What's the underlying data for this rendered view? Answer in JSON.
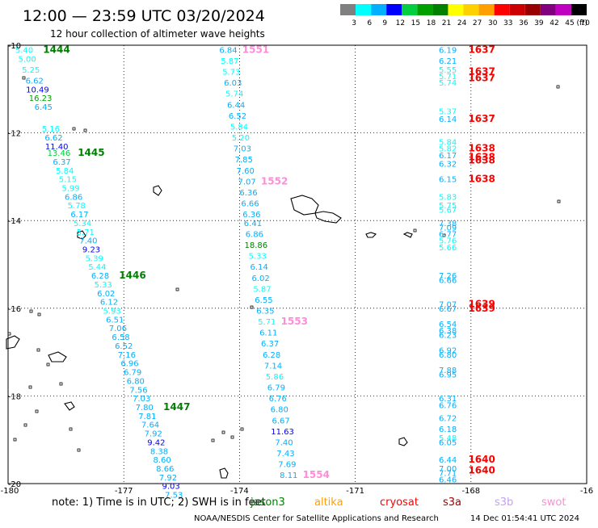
{
  "header": {
    "title": "12:00 — 23:59 UTC 03/20/2024",
    "subtitle": "12 hour collection of altimeter wave heights"
  },
  "colorbar": {
    "unit": "(ft)",
    "ticks": [
      "3",
      "6",
      "9",
      "12",
      "15",
      "18",
      "21",
      "24",
      "27",
      "30",
      "33",
      "36",
      "39",
      "42",
      "45",
      "70"
    ],
    "colors": [
      "#808080",
      "#00ffff",
      "#00b0ff",
      "#0000ff",
      "#00d040",
      "#00a000",
      "#008000",
      "#ffff00",
      "#ffd000",
      "#ffa000",
      "#ff0000",
      "#cc0000",
      "#990000",
      "#800080",
      "#c000c0",
      "#000000"
    ]
  },
  "footer": {
    "note": "note: 1) Time is in UTC; 2) SWH is in feet",
    "satellites": [
      {
        "name": "jason3",
        "color": "#008000"
      },
      {
        "name": "altika",
        "color": "#ffa000"
      },
      {
        "name": "cryosat",
        "color": "#ff0000"
      },
      {
        "name": "s3a",
        "color": "#990000"
      },
      {
        "name": "s3b",
        "color": "#c8a0f0"
      },
      {
        "name": "swot",
        "color": "#ff8cd8"
      }
    ],
    "credit": "NOAA/NESDIS Center for Satellite Applications and Research",
    "timestamp": "14 Dec 01:54:41 UTC 2024"
  },
  "chart_data": {
    "type": "scatter",
    "title": "12:00 — 23:59 UTC 03/20/2024",
    "subtitle": "12 hour collection of altimeter wave heights",
    "x_ticks": [
      "-180",
      "-177",
      "-174",
      "-171",
      "-168",
      "-16"
    ],
    "y_ticks": [
      "-10",
      "-12",
      "-14",
      "-16",
      "-18",
      "-20"
    ],
    "xlim": [
      -180,
      -165
    ],
    "ylim": [
      -20,
      -10
    ],
    "grid": true,
    "value_unit": "ft",
    "color_levels": [
      3,
      6,
      9,
      12,
      15,
      18,
      21,
      24,
      27,
      30,
      33,
      36,
      39,
      42,
      45,
      70
    ],
    "tracks": [
      {
        "satellite": "jason3",
        "values": [
          "5.40",
          "5.00",
          "5.25",
          "6.62",
          "10.49",
          "16.23",
          "6.45",
          "5.16",
          "6.62",
          "11.40",
          "13.46",
          "6.37",
          "5.84",
          "5.15",
          "5.99",
          "6.86",
          "5.78",
          "6.17",
          "5.34",
          "5.71",
          "7.40",
          "9.23",
          "5.39",
          "5.44",
          "6.28",
          "5.33",
          "6.02",
          "6.12",
          "5.93",
          "6.51",
          "7.06",
          "6.58",
          "6.52",
          "7.16",
          "6.96",
          "6.79",
          "6.80",
          "7.56",
          "7.03",
          "7.80",
          "7.81",
          "7.64",
          "7.92",
          "9.42",
          "8.38",
          "8.60",
          "8.66",
          "7.92",
          "9.03",
          "7.53"
        ],
        "lat": [
          -10.1,
          -10.3,
          -10.55,
          -10.8,
          -11.0,
          -11.2,
          -11.4,
          -11.9,
          -12.1,
          -12.3,
          -12.45,
          -12.65,
          -12.85,
          -13.05,
          -13.25,
          -13.45,
          -13.65,
          -13.85,
          -14.05,
          -14.25,
          -14.45,
          -14.65,
          -14.85,
          -15.05,
          -15.25,
          -15.45,
          -15.65,
          -15.85,
          -16.05,
          -16.25,
          -16.45,
          -16.65,
          -16.85,
          -17.05,
          -17.25,
          -17.45,
          -17.65,
          -17.85,
          -18.05,
          -18.25,
          -18.45,
          -18.65,
          -18.85,
          -19.05,
          -19.25,
          -19.45,
          -19.65,
          -19.85,
          -20.05,
          -20.25
        ],
        "labels": [
          {
            "text": "1444",
            "lat": -10.1
          },
          {
            "text": "1445",
            "lat": -12.45
          },
          {
            "text": "1446",
            "lat": -15.25
          },
          {
            "text": "1447",
            "lat": -18.25
          }
        ]
      },
      {
        "satellite": "swot",
        "values": [
          "6.84",
          "5.87",
          "5.73",
          "6.03",
          "5.74",
          "6.44",
          "6.52",
          "5.84",
          "5.20",
          "7.03",
          "7.85",
          "7.60",
          "7.07",
          "6.36",
          "6.66",
          "6.36",
          "6.41",
          "6.86",
          "18.86",
          "5.33",
          "6.14",
          "6.02",
          "5.87",
          "6.55",
          "6.35",
          "5.71",
          "6.11",
          "6.37",
          "6.28",
          "7.14",
          "5.86",
          "6.79",
          "6.76",
          "6.80",
          "6.67",
          "11.63",
          "7.40",
          "7.43",
          "7.69",
          "8.11"
        ],
        "lat": [
          -10.1,
          -10.35,
          -10.6,
          -10.85,
          -11.1,
          -11.35,
          -11.6,
          -11.85,
          -12.1,
          -12.35,
          -12.6,
          -12.85,
          -13.1,
          -13.35,
          -13.6,
          -13.85,
          -14.05,
          -14.3,
          -14.55,
          -14.8,
          -15.05,
          -15.3,
          -15.55,
          -15.8,
          -16.05,
          -16.3,
          -16.55,
          -16.8,
          -17.05,
          -17.3,
          -17.55,
          -17.8,
          -18.05,
          -18.3,
          -18.55,
          -18.8,
          -19.05,
          -19.3,
          -19.55,
          -19.8
        ],
        "labels": [
          {
            "text": "1551",
            "lat": -10.1
          },
          {
            "text": "1552",
            "lat": -13.1
          },
          {
            "text": "1553",
            "lat": -16.3
          },
          {
            "text": "1554",
            "lat": -19.8
          }
        ]
      },
      {
        "satellite": "cryosat",
        "values": [
          "6.19",
          "6.21",
          "5.55",
          "5.71",
          "5.74",
          "5.37",
          "6.14",
          "5.84",
          "5.82",
          "6.17",
          "6.32",
          "6.15",
          "5.83",
          "5.75",
          "5.67",
          "7.38",
          "7.09",
          "6.77",
          "5.76",
          "5.66",
          "7.26",
          "6.66",
          "7.07",
          "6.67",
          "6.54",
          "6.38",
          "6.23",
          "6.92",
          "6.80",
          "7.88",
          "6.95",
          "6.31",
          "6.76",
          "6.72",
          "6.18",
          "5.48",
          "6.05",
          "6.44",
          "7.00",
          "7.71",
          "6.46"
        ],
        "lat": [
          -10.1,
          -10.35,
          -10.55,
          -10.7,
          -10.85,
          -11.5,
          -11.68,
          -12.2,
          -12.35,
          -12.5,
          -12.7,
          -13.05,
          -13.45,
          -13.65,
          -13.75,
          -14.05,
          -14.15,
          -14.3,
          -14.45,
          -14.6,
          -15.25,
          -15.35,
          -15.9,
          -16.0,
          -16.35,
          -16.5,
          -16.6,
          -16.95,
          -17.05,
          -17.4,
          -17.5,
          -18.05,
          -18.2,
          -18.5,
          -18.75,
          -18.95,
          -19.05,
          -19.45,
          -19.65,
          -19.75,
          -19.9
        ],
        "labels": [
          {
            "text": "1637",
            "lat": -10.1
          },
          {
            "text": "1637",
            "lat": -10.6
          },
          {
            "text": "1637",
            "lat": -10.75
          },
          {
            "text": "1637",
            "lat": -11.68
          },
          {
            "text": "1638",
            "lat": -12.35
          },
          {
            "text": "1638",
            "lat": -12.55
          },
          {
            "text": "1638",
            "lat": -12.62
          },
          {
            "text": "1638",
            "lat": -13.05
          },
          {
            "text": "1639",
            "lat": -15.9
          },
          {
            "text": "1639",
            "lat": -16.0
          },
          {
            "text": "1640",
            "lat": -19.45
          },
          {
            "text": "1640",
            "lat": -19.7
          }
        ]
      }
    ]
  }
}
